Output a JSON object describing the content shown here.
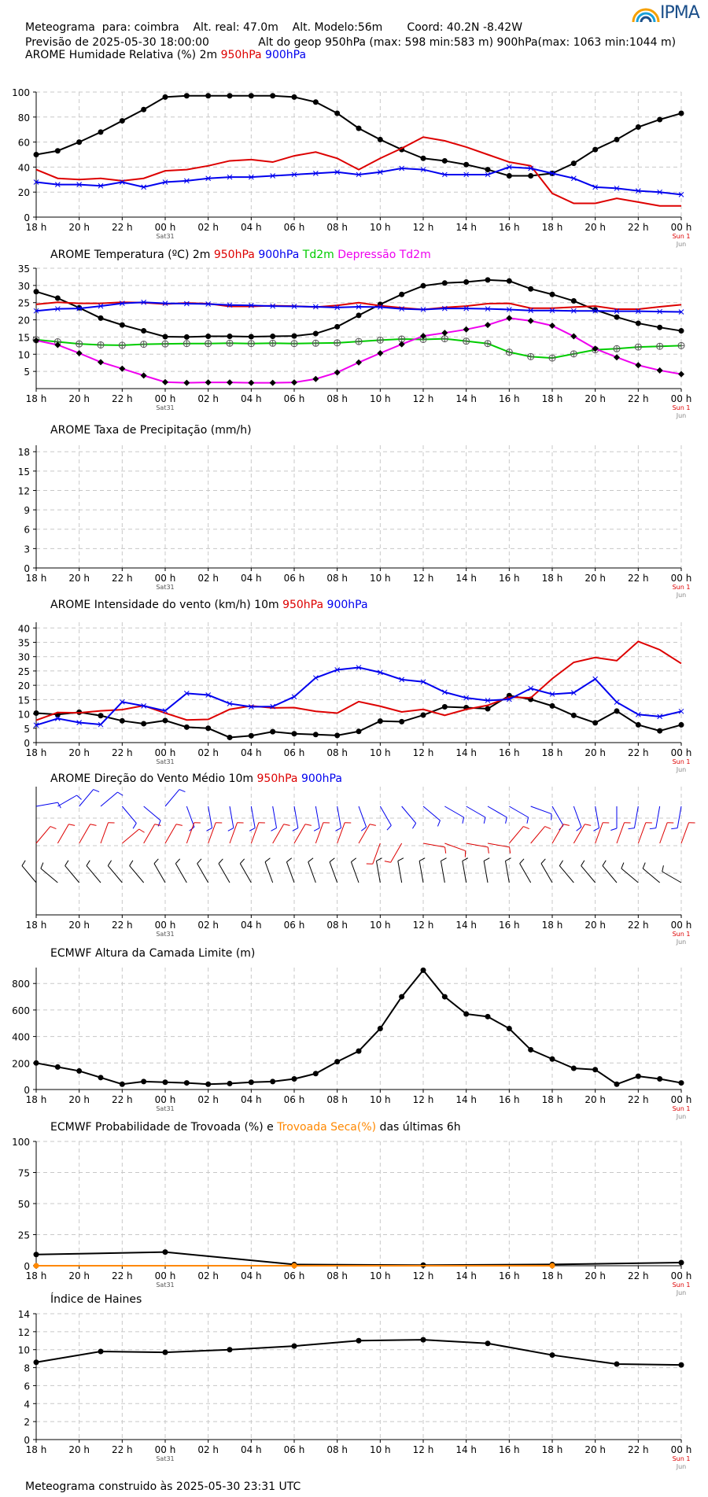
{
  "header": {
    "line1": "Meteograma  para: coimbra    Alt. real: 47.0m    Alt. Modelo:56m       Coord: 40.2N -8.42W",
    "line2": "Previsão de 2025-05-30 18:00:00              Alt do geop 950hPa (max: 598 min:583 m) 900hPa(max: 1063 min:1044 m)",
    "logo_text": "IPMA"
  },
  "footer": "Meteograma construido às 2025-05-30 23:31 UTC",
  "x_ticks": [
    "18 h",
    "20 h",
    "22 h",
    "00 h",
    "02 h",
    "04 h",
    "06 h",
    "08 h",
    "10 h",
    "12 h",
    "14 h",
    "16 h",
    "18 h",
    "20 h",
    "22 h",
    "00 h"
  ],
  "x_sub": {
    "sat": "Sat31",
    "sun": "Sun 1",
    "jun": "Jun"
  },
  "colors": {
    "red": "#dd0000",
    "blue": "#0000ee",
    "green": "#00cc00",
    "magenta": "#ee00ee",
    "orange": "#ff8800",
    "black": "#000000"
  },
  "chart_data": [
    {
      "type": "line",
      "title_parts": [
        {
          "text": "AROME Humidade Relativa (%)  2m  ",
          "color": "black"
        },
        {
          "text": "950hPa",
          "color": "red"
        },
        {
          "text": "  ",
          "color": "black"
        },
        {
          "text": "900hPa",
          "color": "blue"
        }
      ],
      "title_inline_header": true,
      "ylim": [
        0,
        100
      ],
      "yticks": [
        0,
        20,
        40,
        60,
        80,
        100
      ],
      "series": [
        {
          "name": "2m",
          "color": "black",
          "marker": "dot",
          "values": [
            50,
            53,
            60,
            68,
            77,
            86,
            96,
            97,
            97,
            97,
            97,
            97,
            96,
            92,
            83,
            71,
            62,
            54,
            47,
            45,
            42,
            38,
            33,
            33,
            35,
            43,
            54,
            62,
            72,
            78,
            83
          ]
        },
        {
          "name": "950hPa",
          "color": "red",
          "marker": "none",
          "values": [
            38,
            31,
            30,
            31,
            29,
            31,
            37,
            38,
            41,
            45,
            46,
            44,
            49,
            52,
            47,
            38,
            47,
            55,
            64,
            61,
            56,
            50,
            44,
            41,
            19,
            11,
            11,
            15,
            12,
            9,
            9
          ]
        },
        {
          "name": "900hPa",
          "color": "blue",
          "marker": "x",
          "values": [
            28,
            26,
            26,
            25,
            28,
            24,
            28,
            29,
            31,
            32,
            32,
            33,
            34,
            35,
            36,
            34,
            36,
            39,
            38,
            34,
            34,
            34,
            40,
            39,
            35,
            31,
            24,
            23,
            21,
            20,
            18
          ]
        }
      ]
    },
    {
      "type": "line",
      "title_parts": [
        {
          "text": "AROME Temperatura (ºC)  2m  ",
          "color": "black"
        },
        {
          "text": "950hPa",
          "color": "red"
        },
        {
          "text": "  ",
          "color": "black"
        },
        {
          "text": "900hPa",
          "color": "blue"
        },
        {
          "text": "  ",
          "color": "black"
        },
        {
          "text": "Td2m",
          "color": "green"
        },
        {
          "text": "  ",
          "color": "black"
        },
        {
          "text": "Depressão Td2m",
          "color": "magenta"
        }
      ],
      "ylim": [
        0,
        35
      ],
      "yticks": [
        5,
        10,
        15,
        20,
        25,
        30,
        35
      ],
      "series": [
        {
          "name": "2m",
          "color": "black",
          "marker": "dot",
          "values": [
            28.2,
            26.3,
            23.5,
            20.5,
            18.5,
            16.8,
            15.1,
            15.0,
            15.2,
            15.2,
            15.1,
            15.2,
            15.3,
            16.0,
            18.0,
            21.3,
            24.5,
            27.4,
            29.9,
            30.7,
            31.0,
            31.6,
            31.3,
            29.0,
            27.4,
            25.5,
            22.9,
            20.8,
            19.0,
            17.8,
            16.8
          ]
        },
        {
          "name": "950hPa",
          "color": "red",
          "marker": "none",
          "values": [
            24.5,
            25.1,
            24.8,
            24.8,
            25.1,
            25.0,
            24.6,
            24.9,
            24.7,
            23.9,
            23.9,
            24.1,
            24.0,
            23.7,
            24.2,
            25.0,
            24.1,
            23.5,
            23.0,
            23.6,
            24.0,
            24.7,
            24.8,
            23.4,
            23.4,
            23.7,
            24.0,
            23.1,
            23.1,
            23.8,
            24.4
          ]
        },
        {
          "name": "900hPa",
          "color": "blue",
          "marker": "x",
          "values": [
            22.6,
            23.2,
            23.3,
            24.0,
            24.8,
            25.1,
            24.8,
            24.7,
            24.6,
            24.3,
            24.2,
            24.0,
            23.9,
            23.8,
            23.6,
            23.8,
            23.7,
            23.2,
            23.0,
            23.3,
            23.3,
            23.2,
            23.0,
            22.7,
            22.7,
            22.6,
            22.6,
            22.5,
            22.5,
            22.4,
            22.3
          ]
        },
        {
          "name": "Td2m",
          "color": "green",
          "marker": "circle",
          "values": [
            14.2,
            13.6,
            13.0,
            12.7,
            12.6,
            12.9,
            13.0,
            13.1,
            13.1,
            13.2,
            13.1,
            13.2,
            13.1,
            13.2,
            13.3,
            13.7,
            14.1,
            14.4,
            14.3,
            14.5,
            13.8,
            13.1,
            10.6,
            9.3,
            8.9,
            10.1,
            11.3,
            11.6,
            12.1,
            12.3,
            12.5
          ]
        },
        {
          "name": "Depressão Td2m",
          "color": "magenta",
          "marker": "diamond",
          "values": [
            14.0,
            12.7,
            10.3,
            7.7,
            5.8,
            3.8,
            1.9,
            1.7,
            1.8,
            1.8,
            1.7,
            1.7,
            1.8,
            2.8,
            4.7,
            7.6,
            10.3,
            12.9,
            15.3,
            16.2,
            17.2,
            18.5,
            20.5,
            19.7,
            18.3,
            15.2,
            11.6,
            9.1,
            6.8,
            5.3,
            4.2
          ]
        }
      ]
    },
    {
      "type": "line",
      "title_parts": [
        {
          "text": "AROME Taxa de Precipitação (mm/h)",
          "color": "black"
        }
      ],
      "ylim": [
        0,
        19
      ],
      "yticks": [
        0,
        3,
        6,
        9,
        12,
        15,
        18
      ],
      "series": []
    },
    {
      "type": "line",
      "title_parts": [
        {
          "text": "AROME Intensidade do vento (km/h)   10m  ",
          "color": "black"
        },
        {
          "text": "950hPa",
          "color": "red"
        },
        {
          "text": "   ",
          "color": "black"
        },
        {
          "text": "900hPa",
          "color": "blue"
        }
      ],
      "ylim": [
        0,
        42
      ],
      "yticks": [
        0,
        5,
        10,
        15,
        20,
        25,
        30,
        35,
        40
      ],
      "series": [
        {
          "name": "10m",
          "color": "black",
          "marker": "dot",
          "values": [
            10.3,
            9.8,
            10.6,
            9.4,
            7.6,
            6.6,
            7.7,
            5.4,
            5.0,
            1.8,
            2.4,
            3.8,
            3.1,
            2.8,
            2.5,
            3.9,
            7.5,
            7.3,
            9.6,
            12.5,
            12.2,
            11.8,
            16.4,
            15.1,
            12.8,
            9.5,
            6.9,
            11.0,
            6.2,
            4.1,
            6.2
          ]
        },
        {
          "name": "950hPa",
          "color": "red",
          "marker": "none",
          "values": [
            7.8,
            10.5,
            10.4,
            11.1,
            11.5,
            12.9,
            10.3,
            7.9,
            8.1,
            11.6,
            12.8,
            12.1,
            12.2,
            10.9,
            10.3,
            14.3,
            12.7,
            10.7,
            11.6,
            9.5,
            11.6,
            13.0,
            15.9,
            15.6,
            22.3,
            28.0,
            29.7,
            28.6,
            35.3,
            32.4,
            27.6
          ]
        },
        {
          "name": "900hPa",
          "color": "blue",
          "marker": "x",
          "values": [
            6.1,
            8.4,
            7.0,
            6.3,
            14.2,
            12.8,
            11.1,
            17.2,
            16.6,
            13.6,
            12.5,
            12.6,
            16.0,
            22.6,
            25.4,
            26.2,
            24.5,
            22.0,
            21.2,
            17.6,
            15.6,
            14.7,
            15.1,
            18.9,
            16.9,
            17.4,
            22.2,
            14.1,
            9.8,
            9.1,
            10.9
          ]
        }
      ]
    },
    {
      "type": "barbs",
      "title_parts": [
        {
          "text": "AROME Direção do Vento Médio   10m  ",
          "color": "black"
        },
        {
          "text": "950hPa",
          "color": "red"
        },
        {
          "text": "  ",
          "color": "black"
        },
        {
          "text": "900hPa",
          "color": "blue"
        }
      ],
      "series": [
        {
          "name": "900hPa",
          "color": "blue",
          "row": 0,
          "angles": [
            80,
            60,
            40,
            50,
            140,
            130,
            40,
            160,
            170,
            170,
            170,
            170,
            170,
            170,
            170,
            160,
            150,
            140,
            130,
            120,
            120,
            120,
            120,
            110,
            150,
            160,
            170,
            180,
            190,
            190,
            190
          ]
        },
        {
          "name": "950hPa",
          "color": "red",
          "row": 1,
          "angles": [
            40,
            30,
            30,
            20,
            50,
            30,
            30,
            20,
            20,
            20,
            20,
            30,
            30,
            20,
            20,
            30,
            200,
            210,
            100,
            110,
            100,
            100,
            40,
            40,
            30,
            30,
            20,
            20,
            20,
            20,
            20
          ]
        },
        {
          "name": "10m",
          "color": "black",
          "row": 2,
          "angles": [
            320,
            310,
            320,
            320,
            320,
            320,
            330,
            330,
            330,
            330,
            330,
            340,
            340,
            340,
            340,
            340,
            350,
            350,
            350,
            350,
            350,
            350,
            350,
            330,
            330,
            320,
            320,
            320,
            310,
            310,
            300
          ]
        }
      ]
    },
    {
      "type": "line",
      "title_parts": [
        {
          "text": "ECMWF Altura da Camada Limite (m)",
          "color": "black"
        }
      ],
      "ylim": [
        0,
        920
      ],
      "yticks": [
        0,
        200,
        400,
        600,
        800
      ],
      "series": [
        {
          "name": "",
          "color": "black",
          "marker": "dot",
          "values": [
            200,
            170,
            140,
            90,
            40,
            60,
            55,
            50,
            40,
            45,
            55,
            60,
            80,
            120,
            210,
            290,
            460,
            700,
            900,
            700,
            570,
            550,
            460,
            300,
            230,
            160,
            150,
            40,
            100,
            80,
            50
          ]
        }
      ]
    },
    {
      "type": "line",
      "title_parts": [
        {
          "text": "ECMWF Probabilidade de Trovoada (%) e  ",
          "color": "black"
        },
        {
          "text": "Trovoada Seca(%)",
          "color": "orange"
        },
        {
          "text": "  das últimas 6h",
          "color": "black"
        }
      ],
      "ylim": [
        0,
        100
      ],
      "yticks": [
        0,
        25,
        50,
        75,
        100
      ],
      "series": [
        {
          "name": "",
          "color": "black",
          "marker": "dot",
          "points": [
            [
              0,
              9
            ],
            [
              6,
              11
            ],
            [
              12,
              1
            ],
            [
              18,
              0.5
            ],
            [
              24,
              1
            ],
            [
              30,
              2.5
            ]
          ]
        },
        {
          "name": "",
          "color": "orange",
          "marker": "dot",
          "points": [
            [
              0,
              0
            ],
            [
              12,
              0
            ],
            [
              24,
              0
            ]
          ]
        }
      ]
    },
    {
      "type": "line",
      "title_parts": [
        {
          "text": "Índice de Haines",
          "color": "black"
        }
      ],
      "ylim": [
        0,
        14
      ],
      "yticks": [
        0,
        2,
        4,
        6,
        8,
        10,
        12,
        14
      ],
      "series": [
        {
          "name": "",
          "color": "black",
          "marker": "dot",
          "points": [
            [
              0,
              8.6
            ],
            [
              3,
              9.8
            ],
            [
              6,
              9.7
            ],
            [
              9,
              10.0
            ],
            [
              12,
              10.4
            ],
            [
              15,
              11.0
            ],
            [
              18,
              11.1
            ],
            [
              21,
              10.7
            ],
            [
              24,
              9.4
            ],
            [
              27,
              8.4
            ],
            [
              30,
              8.3
            ]
          ]
        }
      ]
    }
  ]
}
